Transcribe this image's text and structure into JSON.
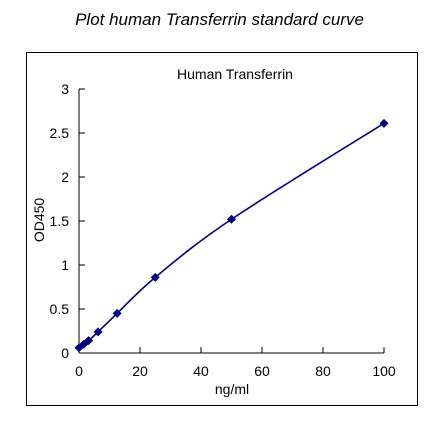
{
  "title": "Plot human Transferrin standard curve",
  "chart_data": {
    "type": "scatter",
    "title": "Human Transferrin",
    "xlabel": "ng/ml",
    "ylabel": "OD450",
    "xlim": [
      0,
      100
    ],
    "ylim": [
      0,
      3
    ],
    "x_ticks": [
      0,
      20,
      40,
      60,
      80,
      100
    ],
    "y_ticks": [
      0,
      0.5,
      1,
      1.5,
      2,
      2.5,
      3
    ],
    "grid": false,
    "series": [
      {
        "x": [
          0,
          1.56,
          3.13,
          6.25,
          12.5,
          25,
          50,
          100
        ],
        "y": [
          0.06,
          0.1,
          0.14,
          0.24,
          0.45,
          0.86,
          1.52,
          2.61
        ]
      }
    ],
    "colors": {
      "series": "#000080",
      "axis": "#000000"
    }
  }
}
